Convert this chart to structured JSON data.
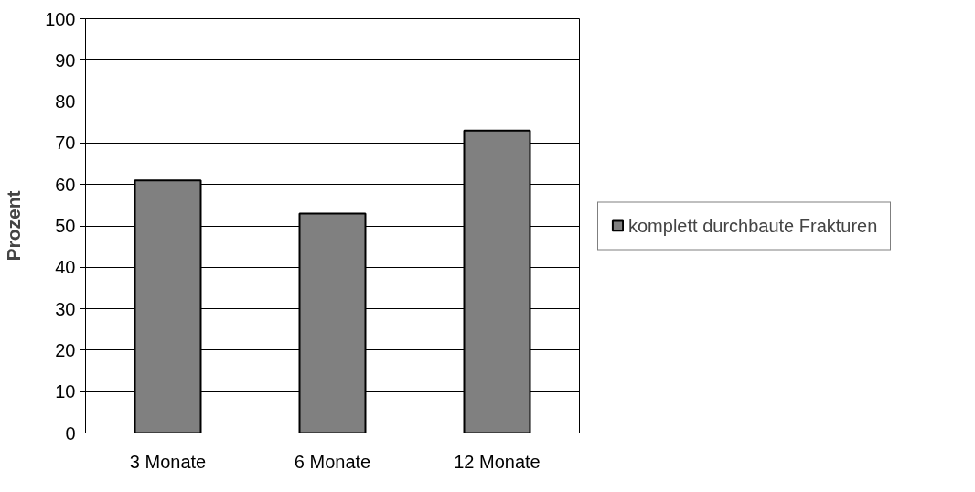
{
  "chart_data": {
    "type": "bar",
    "ylabel": "Prozent",
    "categories": [
      "3 Monate",
      "6 Monate",
      "12 Monate"
    ],
    "series": [
      {
        "name": "komplett durchbaute Frakturen",
        "color": "#808080",
        "values": [
          61,
          53,
          73
        ]
      }
    ],
    "ylim": [
      0,
      100
    ],
    "yticks": [
      0,
      10,
      20,
      30,
      40,
      50,
      60,
      70,
      80,
      90,
      100
    ],
    "grid": "y",
    "legend": "right"
  }
}
